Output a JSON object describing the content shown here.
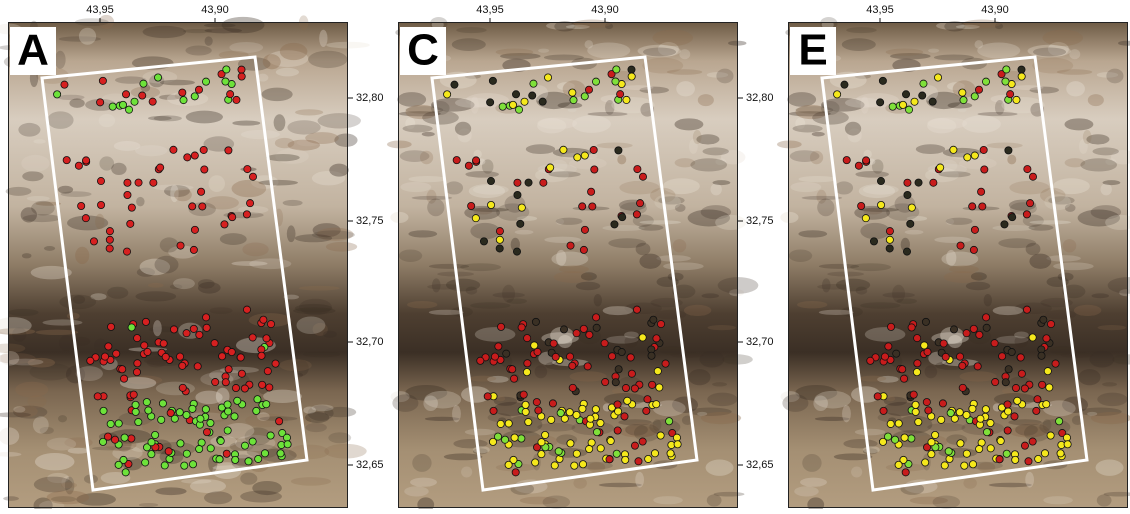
{
  "panels": [
    {
      "label": "A"
    },
    {
      "label": "C"
    },
    {
      "label": "E"
    }
  ],
  "top_axis": {
    "ticks": [
      "43,95",
      "43,90"
    ]
  },
  "right_axis": {
    "ticks": [
      "32,80",
      "32,75",
      "32,70",
      "32,65"
    ]
  }
}
